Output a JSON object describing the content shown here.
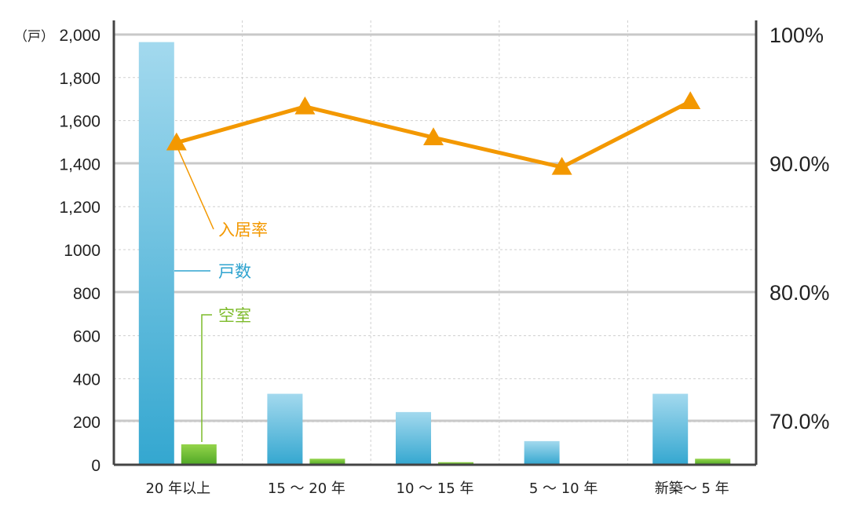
{
  "chart_data": {
    "type": "bar",
    "categories": [
      "20 年以上",
      "15 ～ 20 年",
      "10 ～ 15 年",
      "5 ～ 10 年",
      "新築～ 5 年"
    ],
    "y_unit": "（戸）",
    "ylim": [
      0,
      2000
    ],
    "y_ticks": [
      "0",
      "200",
      "400",
      "600",
      "800",
      "1000",
      "1,200",
      "1,400",
      "1,600",
      "1,800",
      "2,000"
    ],
    "y2lim": [
      67,
      100
    ],
    "y2_ticks": [
      {
        "value": 70,
        "label": "70.0%"
      },
      {
        "value": 80,
        "label": "80.0%"
      },
      {
        "value": 90,
        "label": "90.0%"
      },
      {
        "value": 100,
        "label": "100%"
      }
    ],
    "series": [
      {
        "name": "戸数",
        "kind": "bar",
        "axis": "left",
        "values": [
          1965,
          330,
          245,
          110,
          330
        ],
        "color": "#3aa9d0"
      },
      {
        "name": "空室",
        "kind": "bar",
        "axis": "left",
        "values": [
          95,
          28,
          12,
          0,
          28
        ],
        "color": "#6cbf2c"
      },
      {
        "name": "入居率",
        "kind": "line",
        "axis": "right",
        "values": [
          91.6,
          94.4,
          92.0,
          89.7,
          94.8
        ],
        "color": "#f39800"
      }
    ],
    "annotations": [
      {
        "text": "入居率",
        "series": "入居率",
        "color": "#f39800"
      },
      {
        "text": "戸数",
        "series": "戸数",
        "color": "#2ea3cf"
      },
      {
        "text": "空室",
        "series": "空室",
        "color": "#7dbb2a"
      }
    ],
    "grid": true
  }
}
